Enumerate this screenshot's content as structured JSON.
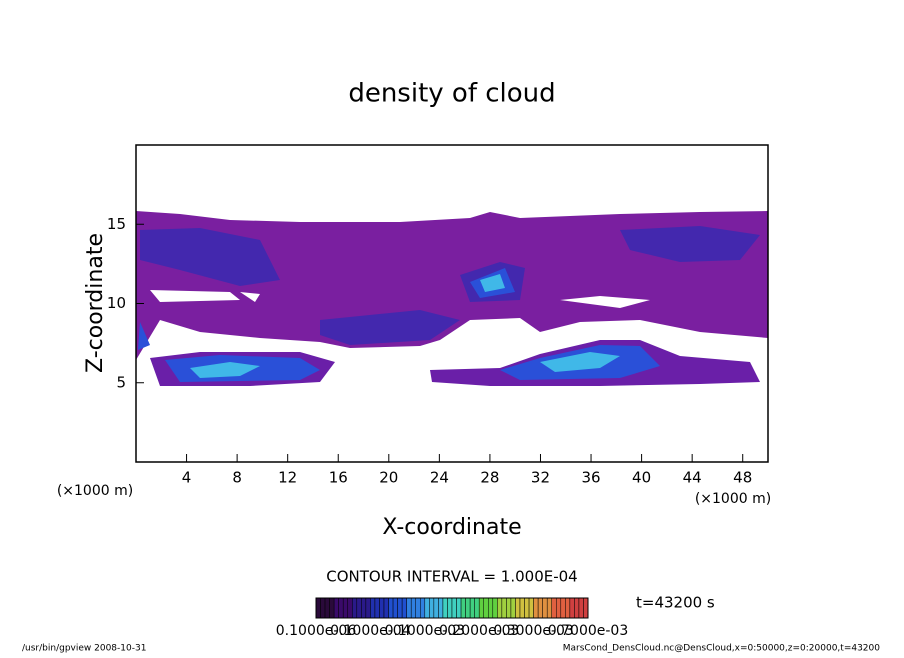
{
  "chart_data": {
    "type": "contour",
    "title": "density of cloud",
    "x_label": "X-coordinate",
    "y_label": "Z-coordinate",
    "x_unit": "(×1000 m)",
    "xlim": [
      0,
      50
    ],
    "xticks": [
      4,
      8,
      12,
      16,
      20,
      24,
      28,
      32,
      36,
      40,
      44,
      48
    ],
    "ylim": [
      0,
      20
    ],
    "yticks": [
      5,
      10,
      15
    ],
    "contour_interval": "CONTOUR INTERVAL = 1.000E-04",
    "time": "t=43200 s",
    "colorbar_labels": [
      "0.1000e-06",
      "0.1000e-04",
      "0.1000e-03",
      "0.2000e-03",
      "0.3000e-03",
      "0.7000e-03"
    ],
    "colorbar_colors": [
      "#2a0a3a",
      "#3a0a6a",
      "#2a1a8a",
      "#2030b0",
      "#2050d0",
      "#3080e0",
      "#40b0e0",
      "#40d0c0",
      "#40d080",
      "#60d040",
      "#a0d040",
      "#d0c040",
      "#e09040",
      "#e06040",
      "#d04040"
    ],
    "footer_left": "/usr/bin/gpview  2008-10-31",
    "footer_right": "MarsCond_DensCloud.nc@DensCloud,x=0:50000,z=0:20000,t=43200"
  }
}
